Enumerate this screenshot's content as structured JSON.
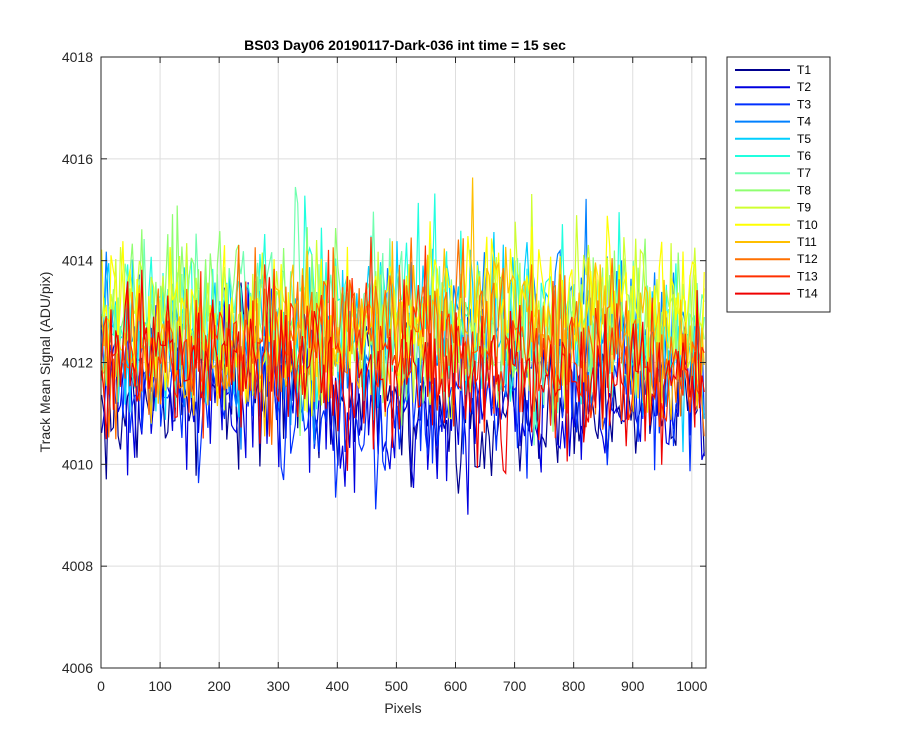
{
  "chart_data": {
    "type": "line",
    "title": "BS03 Day06 20190117-Dark-036 int time = 15 sec",
    "xlabel": "Pixels",
    "ylabel": "Track Mean Signal (ADU/pix)",
    "xlim": [
      0,
      1024
    ],
    "ylim": [
      4006,
      4018
    ],
    "xticks": [
      0,
      100,
      200,
      300,
      400,
      500,
      600,
      700,
      800,
      900,
      1000
    ],
    "yticks": [
      4006,
      4008,
      4010,
      4012,
      4014,
      4016,
      4018
    ],
    "grid": true,
    "legend_position": "outside-top-right",
    "x_sample_step": 4,
    "series": [
      {
        "name": "T1",
        "color": "#00008F",
        "mean": 4011.2,
        "spread": 1.3
      },
      {
        "name": "T2",
        "color": "#0000DF",
        "mean": 4011.2,
        "spread": 1.3
      },
      {
        "name": "T3",
        "color": "#0030FF",
        "mean": 4011.4,
        "spread": 1.3
      },
      {
        "name": "T4",
        "color": "#0080FF",
        "mean": 4012.4,
        "spread": 1.4
      },
      {
        "name": "T5",
        "color": "#00CFFF",
        "mean": 4012.6,
        "spread": 1.4
      },
      {
        "name": "T6",
        "color": "#20FFDF",
        "mean": 4012.8,
        "spread": 1.4
      },
      {
        "name": "T7",
        "color": "#70FFAF",
        "mean": 4012.8,
        "spread": 1.4
      },
      {
        "name": "T8",
        "color": "#8FFF70",
        "mean": 4012.8,
        "spread": 1.4
      },
      {
        "name": "T9",
        "color": "#CFFF30",
        "mean": 4012.8,
        "spread": 1.4
      },
      {
        "name": "T10",
        "color": "#FFFF00",
        "mean": 4012.9,
        "spread": 1.4
      },
      {
        "name": "T11",
        "color": "#FFBF00",
        "mean": 4012.6,
        "spread": 1.4
      },
      {
        "name": "T12",
        "color": "#FF7000",
        "mean": 4012.4,
        "spread": 1.3
      },
      {
        "name": "T13",
        "color": "#FF3000",
        "mean": 4012.2,
        "spread": 1.3
      },
      {
        "name": "T14",
        "color": "#EF0000",
        "mean": 4011.8,
        "spread": 1.2
      }
    ]
  }
}
